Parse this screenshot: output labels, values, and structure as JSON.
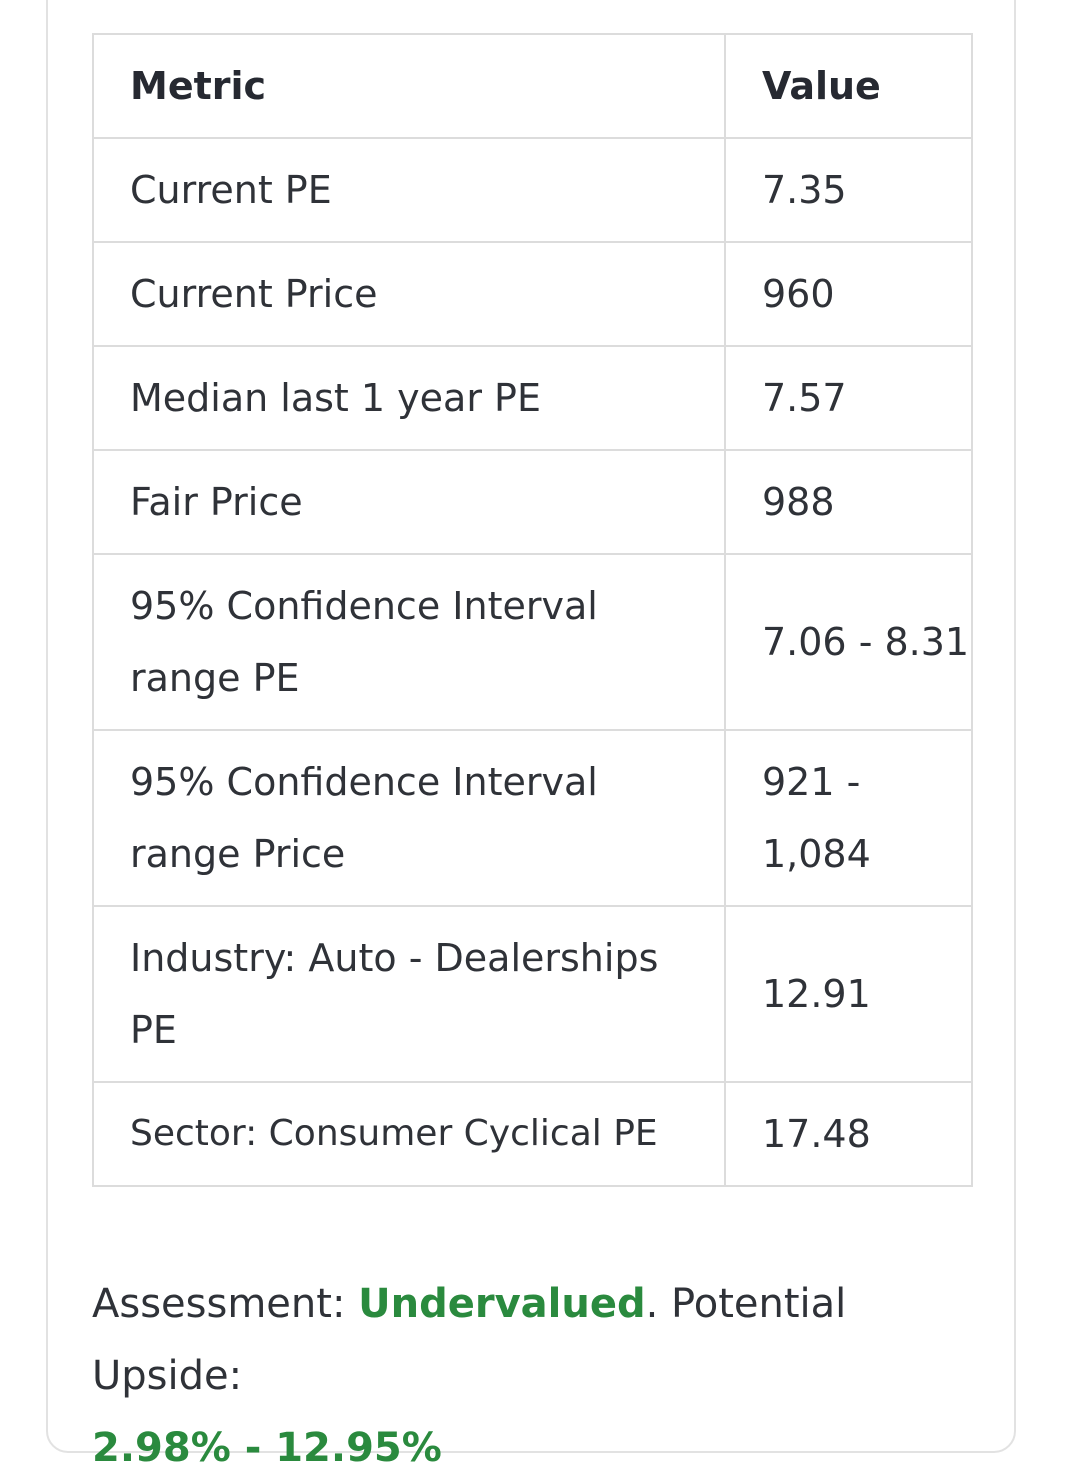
{
  "table": {
    "headers": {
      "metric": "Metric",
      "value": "Value"
    },
    "rows": [
      {
        "metric": "Current PE",
        "value": "7.35"
      },
      {
        "metric": "Current Price",
        "value": "960"
      },
      {
        "metric": "Median last 1 year PE",
        "value": "7.57"
      },
      {
        "metric": "Fair Price",
        "value": "988"
      },
      {
        "metric": "95% Confidence Interval range PE",
        "value": "7.06 - 8.31"
      },
      {
        "metric": "95% Confidence Interval range Price",
        "value": "921 - 1,084"
      },
      {
        "metric": "Industry: Auto - Dealerships PE",
        "value": "12.91"
      },
      {
        "metric": "Sector: Consumer Cyclical PE",
        "value": "17.48"
      }
    ]
  },
  "assessment": {
    "label": "Assessment: ",
    "verdict": "Undervalued",
    "upside_label": ". Potential Upside: ",
    "upside_range": "2.98% - 12.95%"
  },
  "colors": {
    "positive": "#2a8a3e",
    "text": "#2f3238",
    "border": "#dcdcdc"
  }
}
